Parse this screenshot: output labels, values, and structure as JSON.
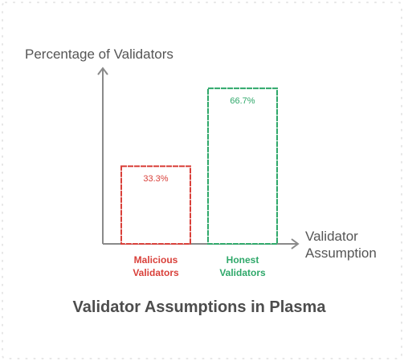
{
  "chart_data": {
    "type": "bar",
    "title": "Validator Assumptions in Plasma",
    "ylabel": "Percentage of Validators",
    "xlabel": [
      "Validator",
      "Assumption"
    ],
    "ylim": [
      0,
      75
    ],
    "grid": false,
    "legend": "none",
    "categories": [
      [
        "Malicious",
        "Validators"
      ],
      [
        "Honest",
        "Validators"
      ]
    ],
    "values": [
      33.3,
      66.7
    ],
    "value_labels": [
      "33.3%",
      "66.7%"
    ],
    "colors": [
      "#d9403a",
      "#2fa86a"
    ]
  },
  "colors": {
    "axis": "#8a8a8a",
    "frame_dots": "#e6e6e6"
  }
}
